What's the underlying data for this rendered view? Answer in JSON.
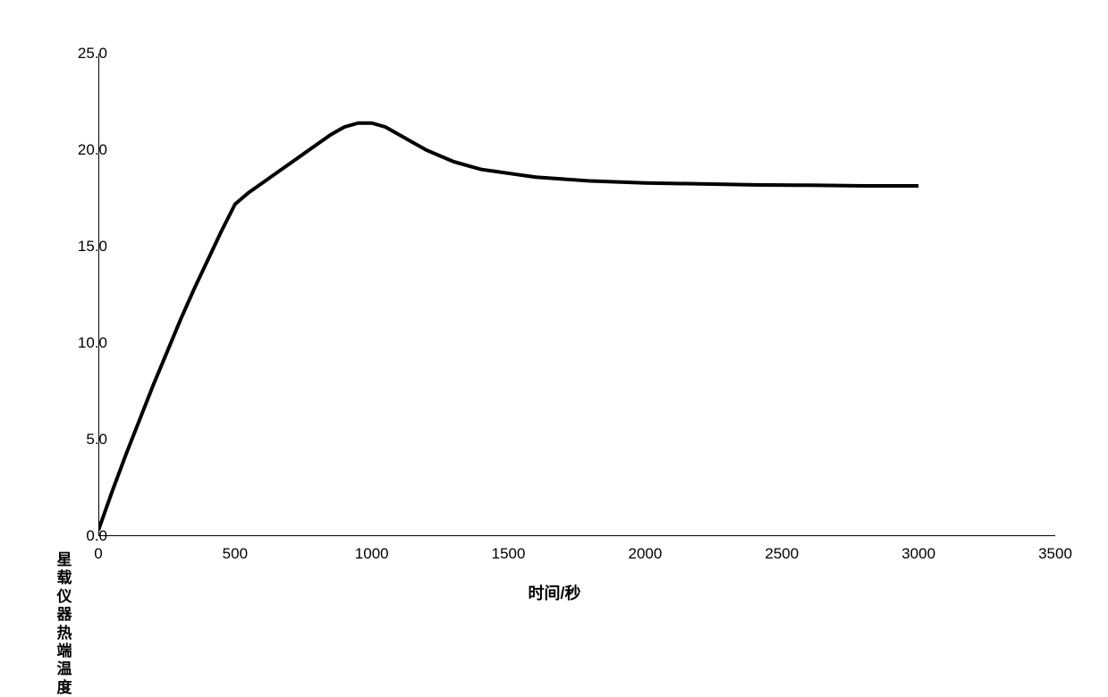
{
  "chart": {
    "type": "line",
    "x_axis_title": "时间/秒",
    "y_axis_title": "星载仪器热端温度",
    "xlim": [
      0,
      3500
    ],
    "ylim": [
      0,
      25
    ],
    "x_ticks": [
      0,
      500,
      1000,
      1500,
      2000,
      2500,
      3000,
      3500
    ],
    "y_ticks": [
      0.0,
      5.0,
      10.0,
      15.0,
      20.0,
      25.0
    ],
    "y_tick_labels": [
      "0.0",
      "5.0",
      "10.0",
      "15.0",
      "20.0",
      "25.0"
    ],
    "x_tick_labels": [
      "0",
      "500",
      "1000",
      "1500",
      "2000",
      "2500",
      "3000",
      "3500"
    ],
    "line_color": "#000000",
    "line_width": 4,
    "axis_color": "#000000",
    "background_color": "#ffffff",
    "label_fontsize": 17,
    "title_fontsize": 18,
    "data": {
      "x": [
        0,
        50,
        100,
        150,
        200,
        250,
        300,
        350,
        400,
        450,
        500,
        550,
        600,
        650,
        700,
        750,
        800,
        850,
        900,
        950,
        1000,
        1050,
        1100,
        1150,
        1200,
        1250,
        1300,
        1350,
        1400,
        1450,
        1500,
        1600,
        1700,
        1800,
        1900,
        2000,
        2200,
        2400,
        2600,
        2800,
        3000
      ],
      "y": [
        0.3,
        2.3,
        4.2,
        6.0,
        7.8,
        9.5,
        11.2,
        12.8,
        14.3,
        15.8,
        17.2,
        17.8,
        18.3,
        18.8,
        19.3,
        19.8,
        20.3,
        20.8,
        21.2,
        21.4,
        21.4,
        21.2,
        20.8,
        20.4,
        20.0,
        19.7,
        19.4,
        19.2,
        19.0,
        18.9,
        18.8,
        18.6,
        18.5,
        18.4,
        18.35,
        18.3,
        18.25,
        18.2,
        18.18,
        18.15,
        18.15
      ]
    }
  }
}
